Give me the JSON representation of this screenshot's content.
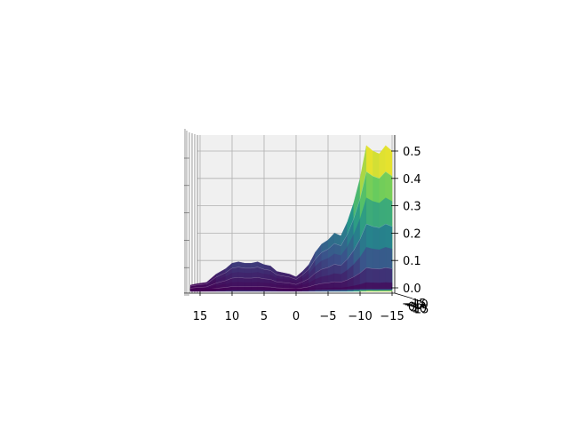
{
  "chart_data": {
    "type": "surface",
    "colormap": "viridis",
    "colorscale": [
      "#440154",
      "#3b528b",
      "#21918c",
      "#5ec962",
      "#fde725"
    ],
    "title": "",
    "x_ticks": [
      15,
      10,
      5,
      0,
      -5,
      -10,
      -15
    ],
    "x_tick_labels": [
      "15",
      "10",
      "5",
      "0",
      "−5",
      "−10",
      "−15"
    ],
    "xlim": [
      18,
      -17
    ],
    "z_ticks": [
      0.0,
      0.1,
      0.2,
      0.3,
      0.4,
      0.5
    ],
    "z_tick_labels": [
      "0.0",
      "0.1",
      "0.2",
      "0.3",
      "0.4",
      "0.5"
    ],
    "zlim": [
      -0.01,
      0.53
    ],
    "y_tick_labels": [
      "−15",
      "−10",
      "−5",
      "0",
      "5",
      "10",
      "15"
    ],
    "grid": true,
    "profile_x": [
      16.5,
      15.5,
      14,
      12.5,
      11,
      10,
      9,
      8,
      7,
      6,
      5,
      4,
      3,
      2,
      1,
      0,
      -1,
      -2,
      -3,
      -4,
      -5,
      -6,
      -7,
      -8,
      -9,
      -10,
      -11,
      -12,
      -13,
      -14,
      -15
    ],
    "profile_z": [
      0.01,
      0.015,
      0.02,
      0.05,
      0.07,
      0.09,
      0.095,
      0.09,
      0.09,
      0.095,
      0.085,
      0.08,
      0.06,
      0.055,
      0.05,
      0.04,
      0.06,
      0.085,
      0.13,
      0.16,
      0.175,
      0.2,
      0.19,
      0.24,
      0.31,
      0.4,
      0.52,
      0.5,
      0.49,
      0.52,
      0.5
    ]
  }
}
